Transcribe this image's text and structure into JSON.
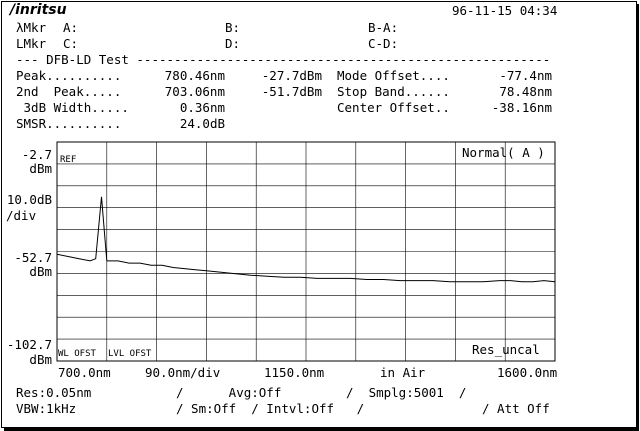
{
  "header": {
    "brand": "/inritsu",
    "datetime": "96-11-15 04:34"
  },
  "markers": {
    "lambda_label": "λMkr",
    "level_label": "LMkr",
    "a": "A:",
    "b": "B:",
    "ba": "B-A:",
    "c": "C:",
    "d": "D:",
    "cd": "C-D:"
  },
  "test": {
    "title_line": "--- DFB-LD Test -------------------------------------------------------",
    "peak_label": "Peak..........",
    "peak_wl": "780.46nm",
    "peak_lvl": "-27.7dBm",
    "peak2_label": "2nd  Peak.....",
    "peak2_wl": "703.06nm",
    "peak2_lvl": "-51.7dBm",
    "width_label": " 3dB Width.....",
    "width_val": "0.36nm",
    "smsr_label": "SMSR..........",
    "smsr_val": "24.0dB",
    "mode_offset_label": "Mode Offset....",
    "mode_offset_val": "-77.4nm",
    "stop_band_label": "Stop Band......",
    "stop_band_val": "78.48nm",
    "center_offset_label": "Center Offset..",
    "center_offset_val": "-38.16nm"
  },
  "chart_data": {
    "type": "line",
    "x_range": [
      700.0,
      1600.0
    ],
    "y_range": [
      -102.7,
      -2.7
    ],
    "y_top": "-2.7",
    "y_top_unit": "dBm",
    "y_scale": "10.0dB",
    "y_scale_unit": "/div",
    "y_ref": "-52.7",
    "y_ref_unit": "dBm",
    "y_bottom": "-102.7",
    "y_bottom_unit": "dBm",
    "x_start": "700.0nm",
    "x_div": "90.0nm/div",
    "x_center": "1150.0nm",
    "medium": "in Air",
    "x_stop": "1600.0nm",
    "mode": "Normal( A )",
    "res_status": "Res_uncal",
    "ref_tag": "REF",
    "wl_ofst_tag": "WL OFST",
    "lvl_ofst_tag": "LVL OFST",
    "grid": true,
    "series": [
      {
        "x": [
          700,
          720,
          740,
          760,
          770,
          780.46,
          790,
          810,
          830,
          850,
          870,
          890,
          910,
          930,
          950,
          970,
          990,
          1010,
          1030,
          1050,
          1080,
          1110,
          1140,
          1170,
          1200,
          1230,
          1260,
          1290,
          1320,
          1350,
          1380,
          1410,
          1440,
          1470,
          1500,
          1520,
          1540,
          1560,
          1580,
          1600
        ],
        "y": [
          -54,
          -55,
          -56,
          -57,
          -56,
          -27.7,
          -57,
          -57,
          -58,
          -58,
          -59,
          -59,
          -60,
          -60.5,
          -61,
          -61.5,
          -62,
          -62.5,
          -63,
          -63.5,
          -64,
          -64.5,
          -64.5,
          -65,
          -65,
          -65,
          -65.5,
          -65.5,
          -66,
          -66,
          -66,
          -66.5,
          -66.5,
          -66.5,
          -66,
          -66,
          -66.5,
          -66.5,
          -66,
          -66.5
        ]
      }
    ]
  },
  "footer": {
    "res": "Res:0.05nm",
    "avg": "/      Avg:Off",
    "smplg": "/  Smplg:5001  /",
    "vbw": "VBW:1kHz",
    "sm": "/ Sm:Off  / Intvl:Off   /",
    "att": "/ Att Off"
  }
}
